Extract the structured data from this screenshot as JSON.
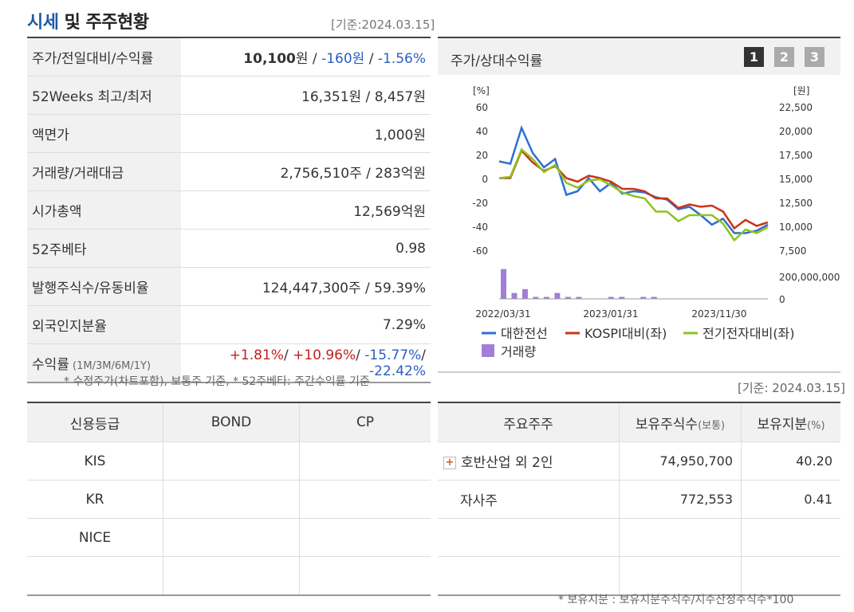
{
  "header": {
    "title_blue": "시세",
    "title_rest": " 및 주주현황",
    "base_date": "[기준:2024.03.15]"
  },
  "market": {
    "rows": [
      {
        "label": "주가/전일대비/수익률",
        "price": "10,100",
        "price_unit": "원",
        "sep1": " / ",
        "change": "-160원",
        "sep2": " / ",
        "rate": "-1.56%"
      },
      {
        "label": "52Weeks 최고/최저",
        "value": "16,351원 / 8,457원"
      },
      {
        "label": "액면가",
        "value": "1,000원"
      },
      {
        "label": "거래량/거래대금",
        "value": "2,756,510주 / 283억원"
      },
      {
        "label": "시가총액",
        "value": "12,569억원"
      },
      {
        "label": "52주베타",
        "value": "0.98"
      },
      {
        "label": "발행주식수/유동비율",
        "value": "124,447,300주 / 59.39%"
      },
      {
        "label": "외국인지분율",
        "value": "7.29%"
      },
      {
        "label": "수익률",
        "label_sub": " (1M/3M/6M/1Y)",
        "r1": "+1.81%",
        "r2": "+10.96%",
        "r3": "-15.77%",
        "r4": "-22.42%",
        "sep": "/ "
      }
    ],
    "note": "* 수정주가(차트포함), 보통주 기준, * 52주베타: 주간수익률 기준"
  },
  "credit": {
    "headers": [
      "신용등급",
      "BOND",
      "CP"
    ],
    "rows": [
      [
        "KIS",
        "",
        ""
      ],
      [
        "KR",
        "",
        ""
      ],
      [
        "NICE",
        "",
        ""
      ],
      [
        "",
        "",
        ""
      ]
    ]
  },
  "chart_panel": {
    "title": "주가/상대수익률",
    "pages": [
      "1",
      "2",
      "3"
    ],
    "base_date": "[기준: 2024.03.15]"
  },
  "chart_data": {
    "type": "line",
    "y_left_unit": "[%]",
    "y_right_unit": "[원]",
    "y_left_ticks": [
      "60",
      "40",
      "20",
      "0",
      "-20",
      "-40",
      "-60"
    ],
    "y_right_ticks": [
      "22,500",
      "20,000",
      "17,500",
      "15,000",
      "12,500",
      "10,000",
      "7,500"
    ],
    "vol_ticks": [
      "200,000,000",
      "0"
    ],
    "x_ticks": [
      "2022/03/31",
      "2023/01/31",
      "2023/11/30"
    ],
    "ylim_left": [
      -60,
      60
    ],
    "series": [
      {
        "name": "대한전선",
        "color": "#2e6fd0",
        "values": [
          15,
          13,
          43,
          22,
          10,
          17,
          -13,
          -10,
          1,
          -10,
          -3,
          -12,
          -10,
          -11,
          -15,
          -17,
          -25,
          -23,
          -30,
          -38,
          -33,
          -45,
          -45,
          -43,
          -38
        ]
      },
      {
        "name": "KOSPI대비(좌)",
        "color": "#c8361a",
        "values": [
          1,
          1,
          24,
          14,
          7,
          11,
          1,
          -2,
          3,
          1,
          -2,
          -8,
          -8,
          -10,
          -16,
          -16,
          -24,
          -21,
          -23,
          -22,
          -27,
          -41,
          -34,
          -39,
          -36
        ]
      },
      {
        "name": "전기전자대비(좌)",
        "color": "#8cc420",
        "values": [
          1,
          2,
          25,
          17,
          6,
          12,
          -3,
          -7,
          -1,
          0,
          -5,
          -11,
          -14,
          -16,
          -27,
          -27,
          -35,
          -30,
          -30,
          -30,
          -37,
          -51,
          -42,
          -45,
          -40
        ]
      }
    ],
    "volume": {
      "name": "거래량",
      "color": "#a27ed8",
      "values": [
        230,
        45,
        75,
        15,
        15,
        45,
        15,
        15,
        0,
        0,
        15,
        15,
        0,
        15,
        15,
        0,
        0,
        0,
        0,
        0,
        0,
        0,
        0,
        0,
        0
      ],
      "unit": "millions"
    }
  },
  "shareholders": {
    "headers": [
      "주요주주",
      "보유주식수",
      "(보통)",
      "보유지분",
      "(%)"
    ],
    "rows": [
      {
        "name": "호반산업 외 2인",
        "expand": "+",
        "shares": "74,950,700",
        "pct": "40.20"
      },
      {
        "name": "자사주",
        "expand": "",
        "shares": "772,553",
        "pct": "0.41"
      },
      {
        "name": "",
        "expand": "",
        "shares": "",
        "pct": ""
      },
      {
        "name": "",
        "expand": "",
        "shares": "",
        "pct": ""
      }
    ],
    "note": "* 보유지분 : 보유지분주식수/지수산정주식수*100"
  }
}
